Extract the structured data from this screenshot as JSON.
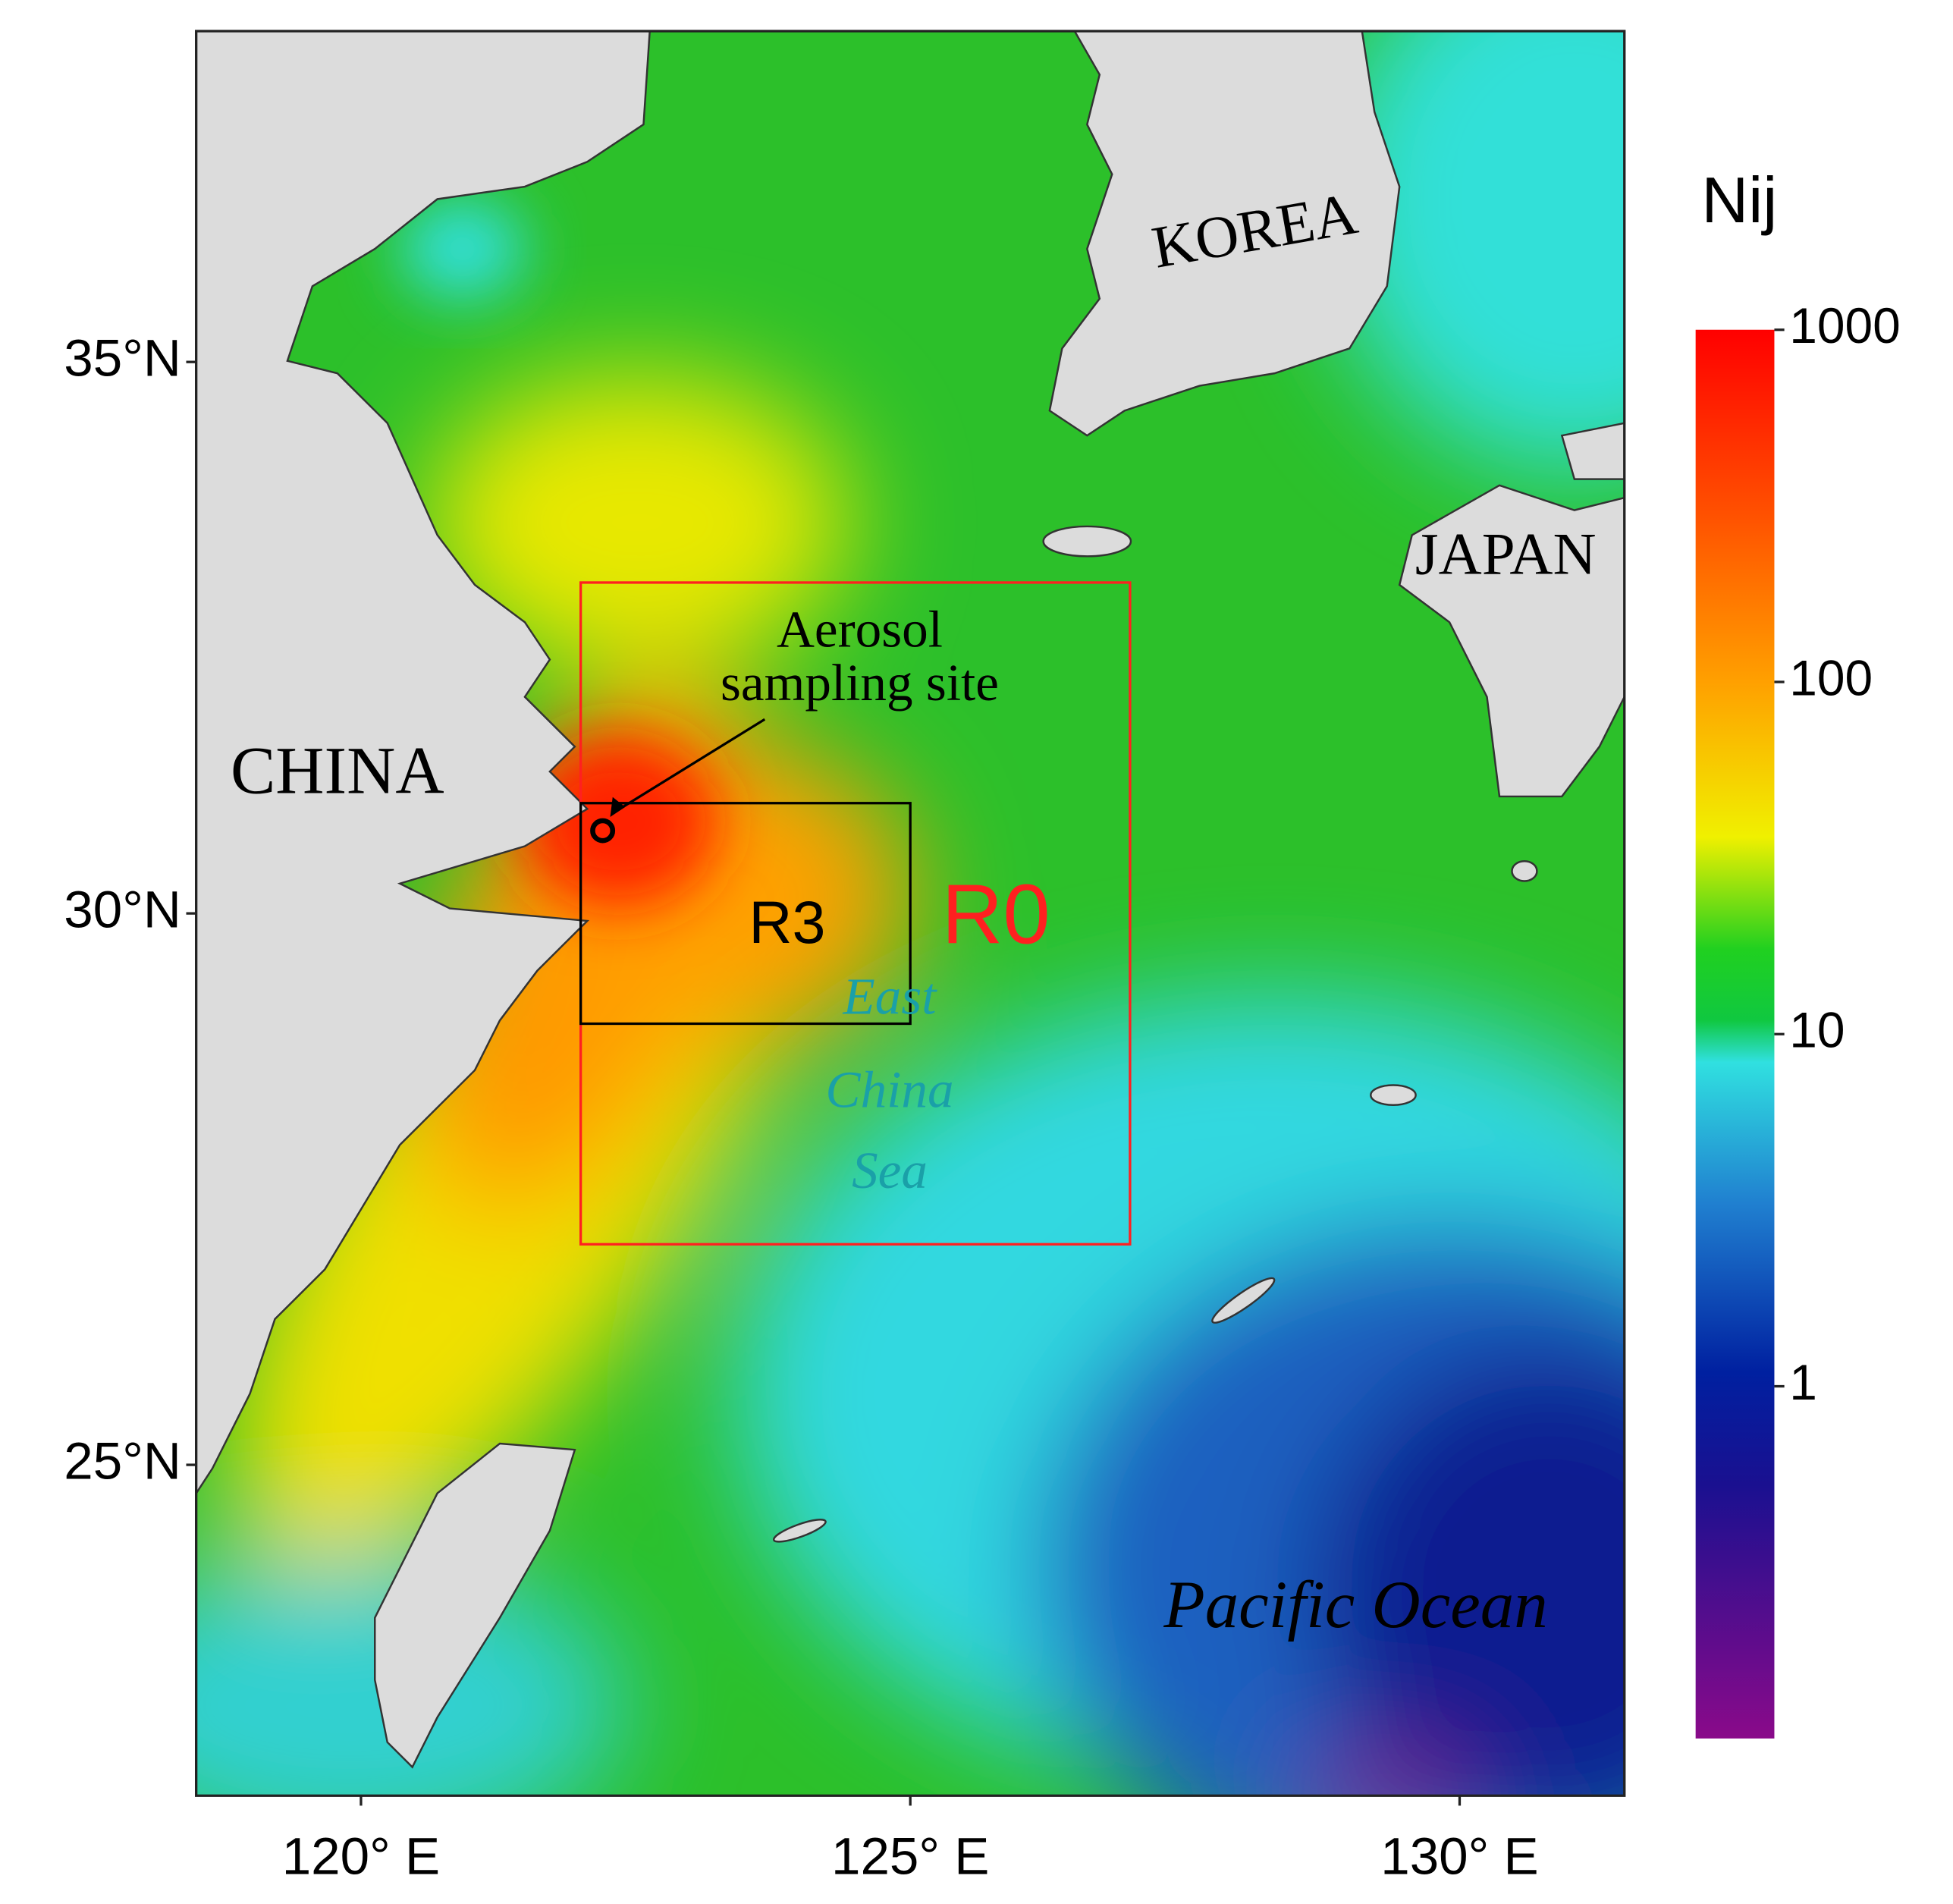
{
  "map": {
    "lon_range": [
      118.5,
      131.5
    ],
    "lat_range": [
      22,
      38
    ],
    "lon_ticks": [
      {
        "value": 120,
        "label": "120° E"
      },
      {
        "value": 125,
        "label": "125° E"
      },
      {
        "value": 130,
        "label": "130° E"
      }
    ],
    "lat_ticks": [
      {
        "value": 35,
        "label": "35°N"
      },
      {
        "value": 30,
        "label": "30°N"
      },
      {
        "value": 25,
        "label": "25°N"
      }
    ],
    "labels": {
      "china": "CHINA",
      "korea": "KOREA",
      "japan": "JAPAN",
      "ocean": "Pacific Ocean",
      "sea": [
        "East",
        "China",
        "Sea"
      ]
    },
    "regions": [
      {
        "name": "R0",
        "lon": [
          122,
          127
        ],
        "lat": [
          27,
          33
        ],
        "color": "#ff2020"
      },
      {
        "name": "R3",
        "lon": [
          122,
          125
        ],
        "lat": [
          29,
          31
        ],
        "color": "#000000"
      }
    ],
    "site": {
      "label": [
        "Aerosol",
        "sampling site"
      ],
      "lon": 122.2,
      "lat": 30.75
    }
  },
  "colorbar": {
    "title": "Nij",
    "scale": "log",
    "range": [
      0.1,
      1000
    ],
    "ticks": [
      1,
      10,
      100,
      1000
    ]
  }
}
